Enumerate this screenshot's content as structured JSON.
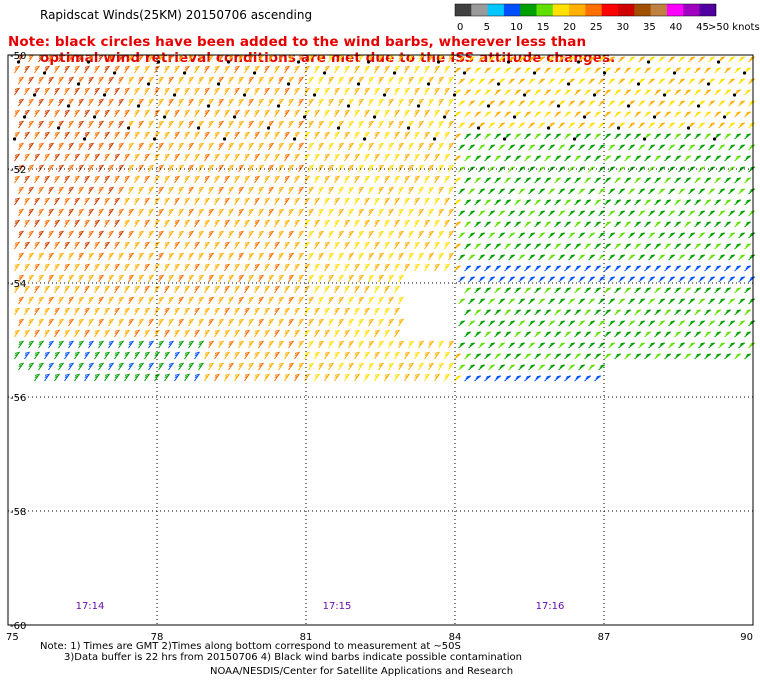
{
  "title": "Rapidscat Winds(25KM) 20150706 ascending",
  "note_line1": "Note: black circles have been added to the wind barbs, wherever less than",
  "note_line2": "optimal wind retrieval conditions are met due to the ISS attitude changes.",
  "legend": {
    "unit": ">50 knots",
    "ticks": [
      "0",
      "5",
      "10",
      "15",
      "20",
      "25",
      "30",
      "35",
      "40",
      "45"
    ],
    "colors": [
      "#404040",
      "#9a9a9a",
      "#00c8ff",
      "#0050ff",
      "#00a000",
      "#60e000",
      "#ffe000",
      "#ffb000",
      "#ff7000",
      "#ff0000",
      "#d00000",
      "#a05000",
      "#c08040",
      "#ff00ff",
      "#a000c0",
      "#5000a0"
    ]
  },
  "lat_labels": [
    "-50",
    "-52",
    "-54",
    "-56",
    "-58",
    "-60"
  ],
  "lon_labels": [
    "75",
    "78",
    "81",
    "84",
    "87",
    "90"
  ],
  "time_labels": [
    "17:14",
    "17:15",
    "17:16"
  ],
  "footer": {
    "line1": "Note: 1) Times are GMT 2)Times along bottom correspond to measurement at ~50S",
    "line2": "3)Data buffer is 22 hrs from 20150706 4) Black wind barbs indicate possible contamination",
    "line3": "NOAA/NESDIS/Center for Satellite Applications and Research"
  },
  "colors": {
    "note": "#e60000",
    "time": "#6a0dad",
    "grid": "#000000"
  }
}
